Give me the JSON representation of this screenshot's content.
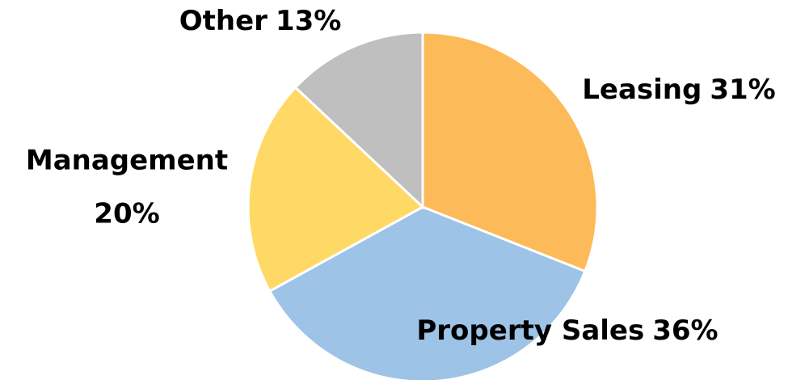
{
  "chart_data": {
    "type": "pie",
    "categories": [
      "Leasing",
      "Property Sales",
      "Management",
      "Other"
    ],
    "values": [
      31,
      36,
      20,
      13
    ],
    "value_labels": [
      "31%",
      "36%",
      "20%",
      "13%"
    ],
    "colors": [
      "#fdba58",
      "#9dc3e6",
      "#ffd966",
      "#bfbfbf"
    ]
  }
}
